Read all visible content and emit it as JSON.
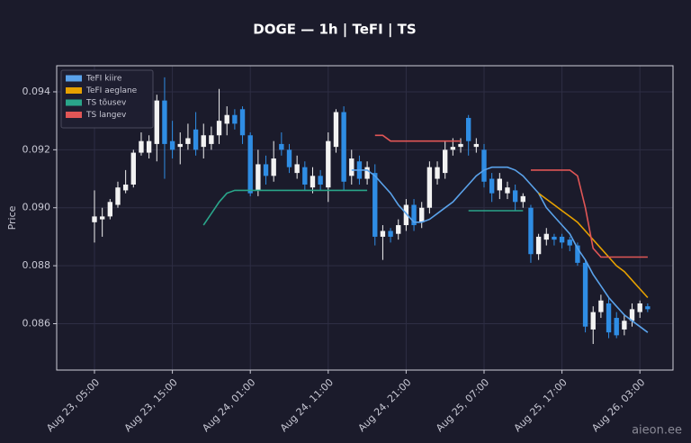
{
  "chart_data": {
    "type": "candlestick",
    "title": "DOGE — 1h  |  TeFI  |  TS",
    "y_label": "Price",
    "watermark": "aieon.ee",
    "categories": [
      "Aug 23, 05:00",
      null,
      null,
      null,
      null,
      null,
      null,
      null,
      null,
      null,
      "Aug 23, 15:00",
      null,
      null,
      null,
      null,
      null,
      null,
      null,
      null,
      null,
      "Aug 24, 01:00",
      null,
      null,
      null,
      null,
      null,
      null,
      null,
      null,
      null,
      "Aug 24, 11:00",
      null,
      null,
      null,
      null,
      null,
      null,
      null,
      null,
      null,
      "Aug 24, 21:00",
      null,
      null,
      null,
      null,
      null,
      null,
      null,
      null,
      null,
      "Aug 25, 07:00",
      null,
      null,
      null,
      null,
      null,
      null,
      null,
      null,
      null,
      "Aug 25, 17:00",
      null,
      null,
      null,
      null,
      null,
      null,
      null,
      null,
      null,
      "Aug 26, 03:00",
      null
    ],
    "candles": {
      "up_color": "#f2f2f2",
      "down_color": "#2f8de4",
      "open": [
        0.0895,
        0.0896,
        0.0897,
        0.0901,
        0.0906,
        0.0908,
        0.0919,
        0.0919,
        0.0922,
        0.0937,
        0.0923,
        0.0921,
        0.0922,
        0.0927,
        0.0921,
        0.0922,
        0.0925,
        0.0929,
        0.0932,
        0.0934,
        0.0925,
        0.0906,
        0.0915,
        0.0911,
        0.0922,
        0.092,
        0.0912,
        0.0914,
        0.0907,
        0.0911,
        0.0907,
        0.0921,
        0.0933,
        0.0911,
        0.0916,
        0.091,
        0.0912,
        0.089,
        0.0892,
        0.0891,
        0.0894,
        0.0901,
        0.0895,
        0.09,
        0.091,
        0.0912,
        0.092,
        0.0921,
        0.0931,
        0.0921,
        0.092,
        0.091,
        0.0906,
        0.0905,
        0.0906,
        0.0902,
        0.09,
        0.0884,
        0.0889,
        0.089,
        0.089,
        0.0889,
        0.0887,
        0.0881,
        0.0858,
        0.0864,
        0.0867,
        0.0862,
        0.0858,
        0.0861,
        0.0864,
        0.0866
      ],
      "high": [
        0.0906,
        0.09,
        0.0903,
        0.0909,
        0.0913,
        0.092,
        0.0926,
        0.0925,
        0.0939,
        0.0945,
        0.093,
        0.0926,
        0.0929,
        0.0933,
        0.0929,
        0.0928,
        0.0941,
        0.0935,
        0.0934,
        0.0935,
        0.0926,
        0.092,
        0.0918,
        0.0923,
        0.0926,
        0.0922,
        0.0918,
        0.0916,
        0.0914,
        0.0913,
        0.0926,
        0.0934,
        0.0935,
        0.092,
        0.0918,
        0.0916,
        0.0915,
        0.0894,
        0.0893,
        0.0896,
        0.0903,
        0.0903,
        0.0902,
        0.0916,
        0.0916,
        0.0923,
        0.0924,
        0.0924,
        0.0932,
        0.0924,
        0.0922,
        0.0912,
        0.0912,
        0.0909,
        0.0908,
        0.0905,
        0.0901,
        0.0891,
        0.0893,
        0.0891,
        0.0891,
        0.089,
        0.0888,
        0.0882,
        0.0866,
        0.087,
        0.0869,
        0.0864,
        0.0863,
        0.0867,
        0.0868,
        0.0867
      ],
      "low": [
        0.0888,
        0.089,
        0.0896,
        0.09,
        0.0905,
        0.0907,
        0.0918,
        0.0917,
        0.0916,
        0.091,
        0.0917,
        0.0915,
        0.092,
        0.0918,
        0.0917,
        0.092,
        0.0922,
        0.0925,
        0.0927,
        0.0922,
        0.0904,
        0.0904,
        0.0908,
        0.0909,
        0.0918,
        0.0912,
        0.091,
        0.0906,
        0.0905,
        0.0906,
        0.0902,
        0.0919,
        0.0906,
        0.0908,
        0.0908,
        0.0908,
        0.0887,
        0.0882,
        0.0888,
        0.0889,
        0.0892,
        0.0892,
        0.0893,
        0.0898,
        0.0908,
        0.091,
        0.0918,
        0.0919,
        0.0918,
        0.0919,
        0.0907,
        0.0902,
        0.0903,
        0.0903,
        0.0899,
        0.09,
        0.0881,
        0.0882,
        0.0887,
        0.0887,
        0.0886,
        0.0885,
        0.088,
        0.0857,
        0.0853,
        0.0862,
        0.0855,
        0.0855,
        0.0856,
        0.0859,
        0.0862,
        0.0864
      ],
      "close": [
        0.0897,
        0.0897,
        0.0902,
        0.0907,
        0.0908,
        0.0919,
        0.0923,
        0.0923,
        0.0937,
        0.0922,
        0.092,
        0.0922,
        0.0924,
        0.092,
        0.0925,
        0.0925,
        0.093,
        0.0932,
        0.0929,
        0.0925,
        0.0905,
        0.0915,
        0.0911,
        0.0917,
        0.092,
        0.0914,
        0.0915,
        0.0908,
        0.0911,
        0.0908,
        0.0923,
        0.0933,
        0.0909,
        0.0917,
        0.091,
        0.0914,
        0.089,
        0.0892,
        0.089,
        0.0894,
        0.0901,
        0.0894,
        0.09,
        0.0914,
        0.0914,
        0.092,
        0.0921,
        0.0922,
        0.0923,
        0.0922,
        0.0909,
        0.0905,
        0.091,
        0.0907,
        0.0902,
        0.0904,
        0.0884,
        0.089,
        0.0891,
        0.0889,
        0.0888,
        0.0887,
        0.0881,
        0.0859,
        0.0864,
        0.0868,
        0.0857,
        0.0856,
        0.0861,
        0.0865,
        0.0867,
        0.0865
      ]
    },
    "series": [
      {
        "name": "TeFI kiire",
        "color": "#5aa2ea",
        "values": [
          null,
          null,
          null,
          null,
          null,
          null,
          null,
          null,
          null,
          null,
          null,
          null,
          null,
          null,
          null,
          null,
          null,
          null,
          null,
          null,
          null,
          null,
          null,
          null,
          null,
          null,
          null,
          null,
          null,
          null,
          null,
          null,
          null,
          0.0913,
          0.0913,
          0.0913,
          0.0911,
          0.0908,
          0.0905,
          0.0901,
          0.0898,
          0.0895,
          0.0895,
          0.0896,
          0.0898,
          0.09,
          0.0902,
          0.0905,
          0.0908,
          0.0911,
          0.0913,
          0.0914,
          0.0914,
          0.0914,
          0.0913,
          0.0911,
          0.0908,
          0.0905,
          0.09,
          0.0897,
          0.0894,
          0.0891,
          0.0886,
          0.0882,
          0.0877,
          0.0873,
          0.0869,
          0.0866,
          0.0863,
          0.0861,
          0.0859,
          0.0857
        ]
      },
      {
        "name": "TeFI aeglane",
        "color": "#e6a100",
        "values": [
          null,
          null,
          null,
          null,
          null,
          null,
          null,
          null,
          null,
          null,
          null,
          null,
          null,
          null,
          null,
          null,
          null,
          null,
          null,
          null,
          null,
          null,
          null,
          null,
          null,
          null,
          null,
          null,
          null,
          null,
          null,
          null,
          null,
          null,
          null,
          null,
          null,
          null,
          null,
          null,
          null,
          null,
          null,
          null,
          null,
          null,
          null,
          null,
          null,
          null,
          null,
          null,
          null,
          null,
          null,
          null,
          null,
          0.0905,
          0.0903,
          0.0901,
          0.0899,
          0.0897,
          0.0895,
          0.0892,
          0.0889,
          0.0886,
          0.0883,
          0.088,
          0.0878,
          0.0875,
          0.0872,
          0.0869
        ]
      },
      {
        "name": "TS tõusev",
        "color": "#2aa58a",
        "values": [
          null,
          null,
          null,
          null,
          null,
          null,
          null,
          null,
          null,
          null,
          null,
          null,
          null,
          null,
          0.0894,
          0.0898,
          0.0902,
          0.0905,
          0.0906,
          0.0906,
          0.0906,
          0.0906,
          0.0906,
          0.0906,
          0.0906,
          0.0906,
          0.0906,
          0.0906,
          0.0906,
          0.0906,
          0.0906,
          0.0906,
          0.0906,
          0.0906,
          0.0906,
          0.0906,
          null,
          null,
          null,
          null,
          null,
          null,
          null,
          null,
          null,
          null,
          null,
          null,
          0.0899,
          0.0899,
          0.0899,
          0.0899,
          0.0899,
          0.0899,
          0.0899,
          0.0899,
          null,
          null,
          null,
          null,
          null,
          null,
          null,
          null,
          null,
          null,
          null,
          null,
          null,
          null,
          null,
          null
        ]
      },
      {
        "name": "TS langev",
        "color": "#e05656",
        "values": [
          null,
          null,
          null,
          null,
          null,
          null,
          null,
          null,
          null,
          null,
          null,
          null,
          null,
          null,
          null,
          null,
          null,
          null,
          null,
          null,
          null,
          null,
          null,
          null,
          null,
          null,
          null,
          null,
          null,
          null,
          null,
          null,
          null,
          null,
          null,
          null,
          0.0925,
          0.0925,
          0.0923,
          0.0923,
          0.0923,
          0.0923,
          0.0923,
          0.0923,
          0.0923,
          0.0923,
          0.0923,
          0.0923,
          null,
          null,
          null,
          null,
          null,
          null,
          null,
          null,
          0.0913,
          0.0913,
          0.0913,
          0.0913,
          0.0913,
          0.0913,
          0.0911,
          0.09,
          0.0886,
          0.0883,
          0.0883,
          0.0883,
          0.0883,
          0.0883,
          0.0883,
          0.0883
        ]
      }
    ],
    "ylim": [
      0.0844,
      0.0949
    ],
    "yticks": [
      0.086,
      0.088,
      {
        "value": 0.09,
        "label": "0.090"
      },
      0.092,
      0.094
    ],
    "grid": true,
    "legend": "upper left"
  }
}
